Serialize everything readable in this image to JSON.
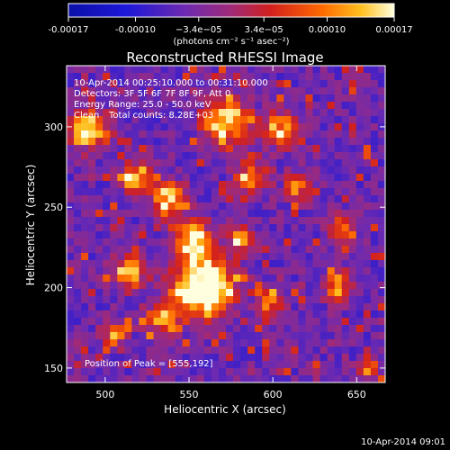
{
  "chart_data": {
    "type": "heatmap",
    "title": "Reconstructed RHESSI Image",
    "xlabel": "Heliocentric X (arcsec)",
    "ylabel": "Heliocentric Y (arcsec)",
    "xlim": [
      477,
      667
    ],
    "ylim": [
      141,
      338
    ],
    "x_ticks": [
      500,
      550,
      600,
      650
    ],
    "y_ticks": [
      150,
      200,
      250,
      300
    ],
    "x_tick_labels": [
      "500",
      "550",
      "600",
      "650"
    ],
    "y_tick_labels": [
      "150",
      "200",
      "250",
      "300"
    ],
    "colorbar": {
      "range": [
        -0.00017,
        0.00017
      ],
      "ticks": [
        -0.00017,
        -0.0001,
        -3.4e-05,
        3.4e-05,
        0.0001,
        0.00017
      ],
      "tick_labels": [
        "-0.00017",
        "-0.00010",
        "−3.4e−05",
        "3.4e−05",
        "0.00010",
        "0.00017"
      ],
      "units_label": "(photons cm⁻² s⁻¹ asec⁻²)"
    },
    "grid": false,
    "peak_position": [
      555,
      192
    ],
    "info": {
      "time_range": "10-Apr-2014 00:25:10.000 to 00:31:10.000",
      "detectors": "Detectors: 3F 5F 6F 7F 8F 9F, Att 0",
      "energy": "Energy Range: 25.0 - 50.0 keV",
      "method": "Clean",
      "counts": "Total counts: 8.28E+03"
    },
    "peak_label": "Position of Peak = [555,192]",
    "timestamp": "10-Apr-2014 09:01"
  },
  "colors": {
    "background": "#000000",
    "cmap_low": "#0a14d0",
    "cmap_mid_low": "#7a28a0",
    "cmap_mid": "#c8201e",
    "cmap_high": "#ff9a00",
    "cmap_max": "#ffffd8"
  }
}
